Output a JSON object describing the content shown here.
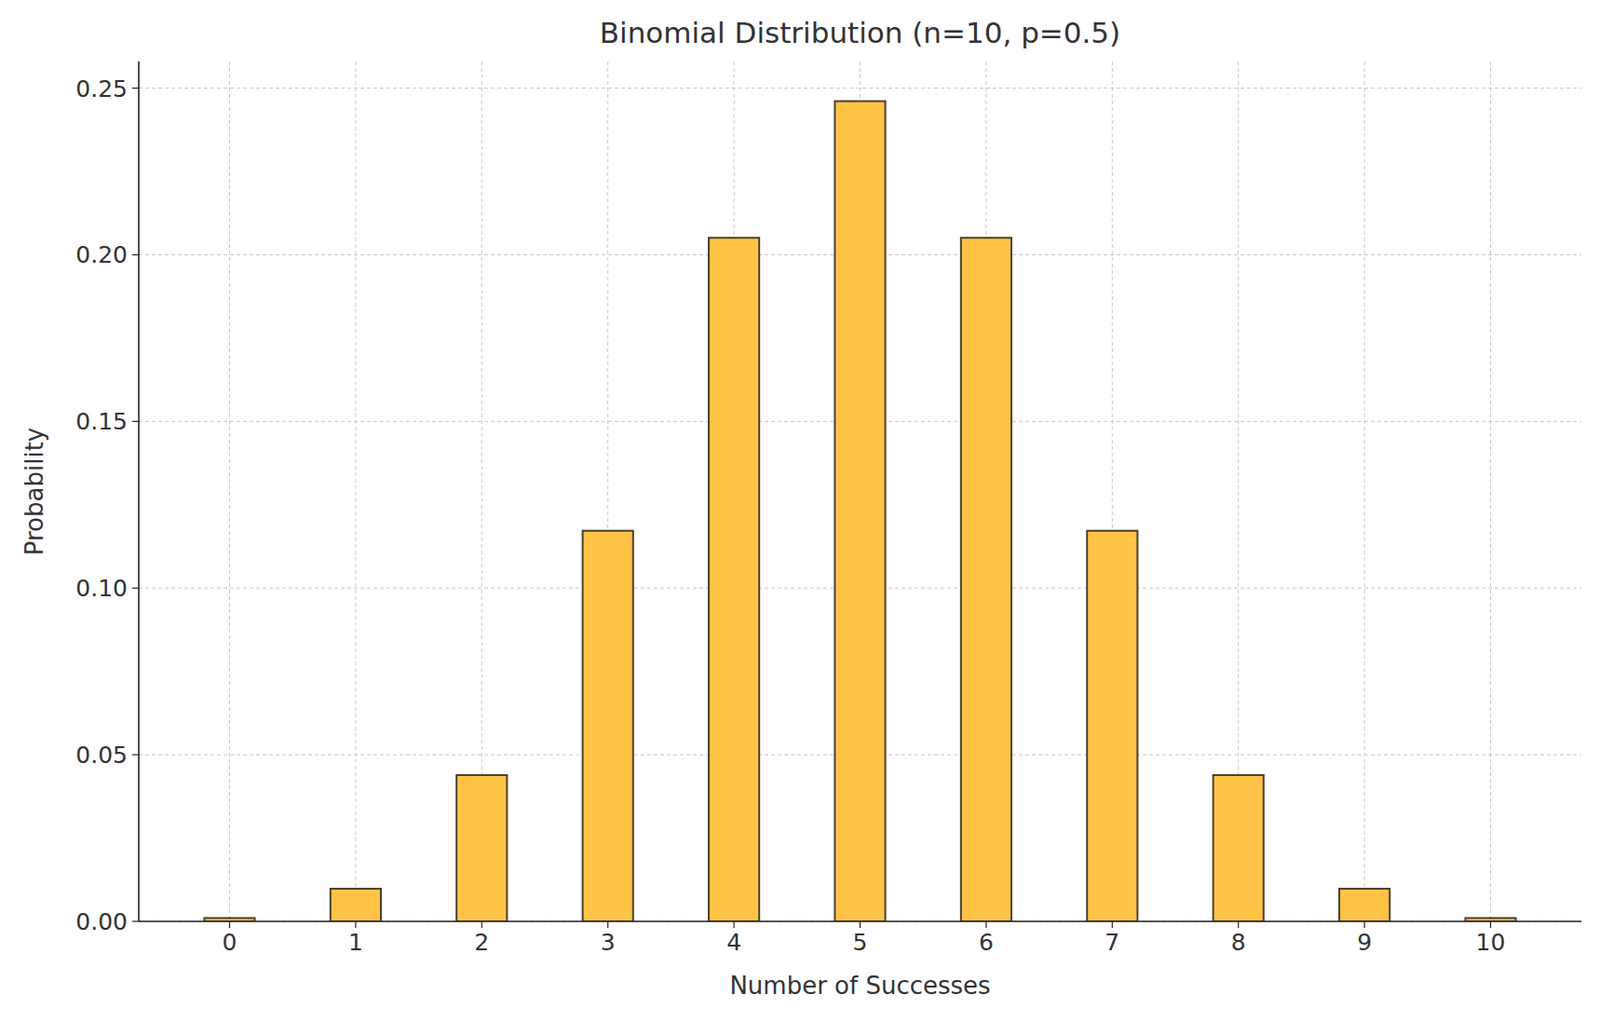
{
  "chart_data": {
    "type": "bar",
    "title": "Binomial Distribution (n=10, p=0.5)",
    "x_label": "Number of Successes",
    "y_label": "Probability",
    "x": [
      0,
      1,
      2,
      3,
      4,
      5,
      6,
      7,
      8,
      9,
      10
    ],
    "values": [
      0.001,
      0.0098,
      0.0439,
      0.1172,
      0.2051,
      0.2461,
      0.2051,
      0.1172,
      0.0439,
      0.0098,
      0.001
    ],
    "color": "#ffc445",
    "xlim": [
      -0.72,
      10.72
    ],
    "xticks": [
      0,
      1,
      2,
      3,
      4,
      5,
      6,
      7,
      8,
      9,
      10
    ],
    "ylim": [
      0,
      0.258
    ],
    "yticks": [
      {
        "value": 0,
        "label": "0.00"
      },
      {
        "value": 0.05,
        "label": "0.05"
      },
      {
        "value": 0.1,
        "label": "0.10"
      },
      {
        "value": 0.15,
        "label": "0.15"
      },
      {
        "value": 0.2,
        "label": "0.20"
      },
      {
        "value": 0.25,
        "label": "0.25"
      }
    ],
    "grid": true
  }
}
